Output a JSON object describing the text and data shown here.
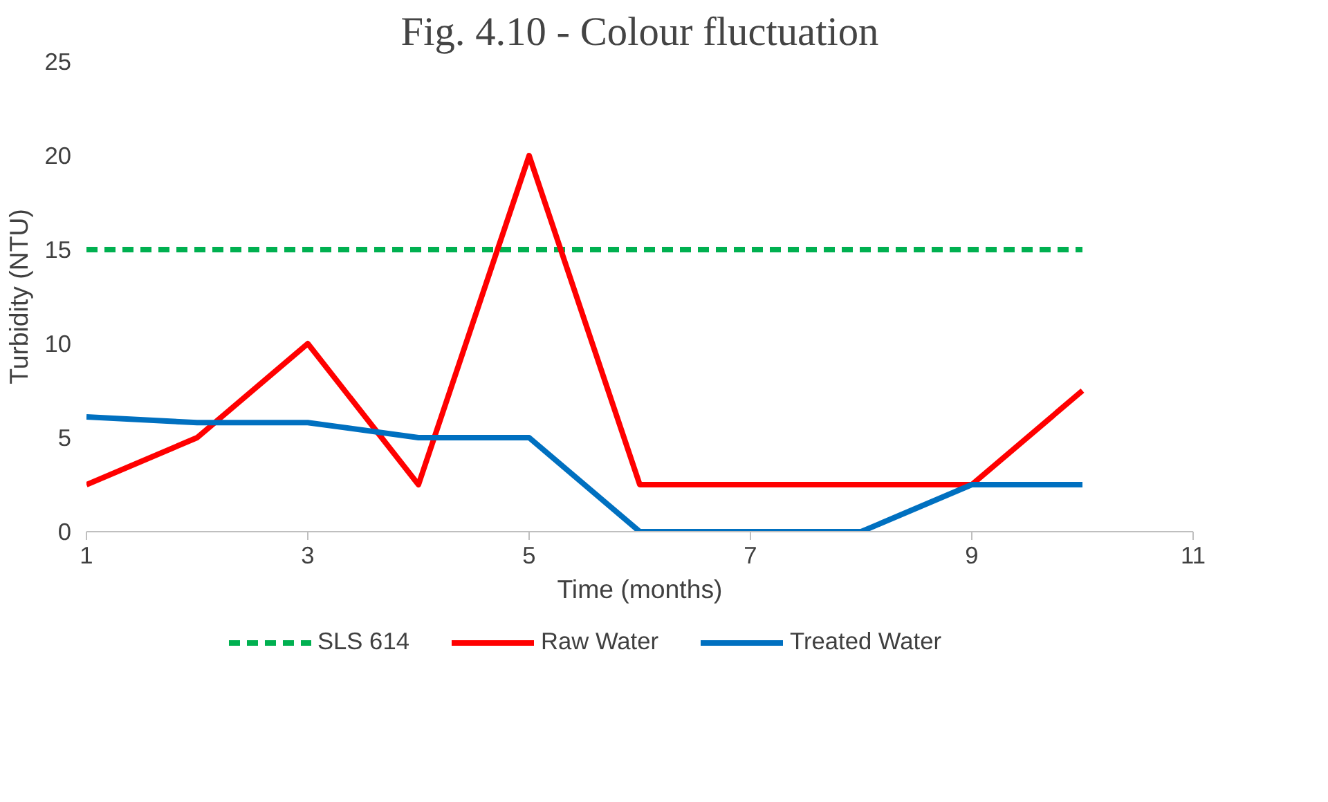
{
  "chart_data": {
    "type": "line",
    "title": "Fig. 4.10 - Colour fluctuation",
    "xlabel": "Time (months)",
    "ylabel": "Turbidity (NTU)",
    "x": [
      1,
      2,
      3,
      4,
      5,
      6,
      7,
      8,
      9,
      10
    ],
    "series": [
      {
        "name": "SLS 614",
        "color": "#00b050",
        "line_style": "dashed",
        "values": [
          15,
          15,
          15,
          15,
          15,
          15,
          15,
          15,
          15,
          15
        ]
      },
      {
        "name": "Raw Water",
        "color": "#ff0000",
        "line_style": "solid",
        "values": [
          2.5,
          5,
          10,
          2.5,
          20,
          2.5,
          2.5,
          2.5,
          2.5,
          7.5
        ]
      },
      {
        "name": "Treated Water",
        "color": "#0070c0",
        "line_style": "solid",
        "values": [
          6.1,
          5.8,
          5.8,
          5,
          5,
          0,
          0,
          0,
          2.5,
          2.5
        ]
      }
    ],
    "xlim": [
      1,
      11
    ],
    "xticks": [
      1,
      3,
      5,
      7,
      9,
      11
    ],
    "ylim": [
      0,
      25
    ],
    "yticks": [
      0,
      5,
      10,
      15,
      20,
      25
    ],
    "grid": false,
    "legend": "bottom",
    "marker": "none"
  }
}
